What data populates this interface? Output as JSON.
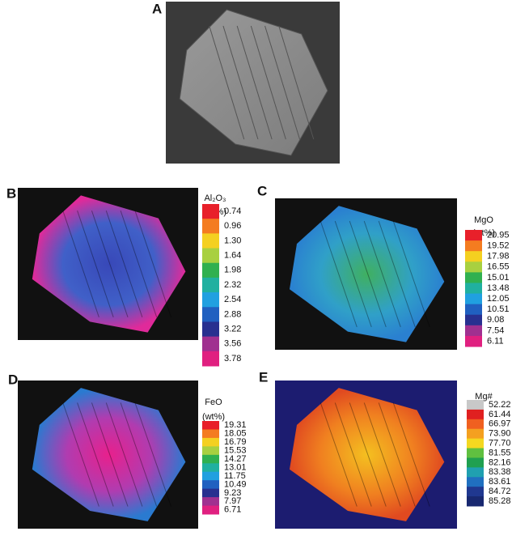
{
  "panels": [
    {
      "label": "A"
    },
    {
      "label": "B",
      "legend": {
        "title": "Al₂O₃",
        "unit": "(wt%)",
        "labels": [
          "0.74",
          "0.96",
          "1.30",
          "1.64",
          "1.98",
          "2.32",
          "2.54",
          "2.88",
          "3.22",
          "3.56",
          "3.78"
        ]
      }
    },
    {
      "label": "C",
      "legend": {
        "title": "MgO",
        "unit": "(wt%)",
        "labels": [
          "20.95",
          "19.52",
          "17.98",
          "16.55",
          "15.01",
          "13.48",
          "12.05",
          "10.51",
          "9.08",
          "7.54",
          "6.11"
        ]
      }
    },
    {
      "label": "D",
      "legend": {
        "title": "FeO",
        "unit": "(wt%)",
        "labels": [
          "19.31",
          "18.05",
          "16.79",
          "15.53",
          "14.27",
          "13.01",
          "11.75",
          "10.49",
          "9.23",
          "7.97",
          "6.71"
        ]
      }
    },
    {
      "label": "E",
      "legend": {
        "title": "Mg#",
        "labels": [
          "52.22",
          "61.44",
          "66.97",
          "73.90",
          "77.70",
          "81.55",
          "82.16",
          "83.38",
          "83.61",
          "84.72",
          "85.28"
        ]
      }
    }
  ]
}
